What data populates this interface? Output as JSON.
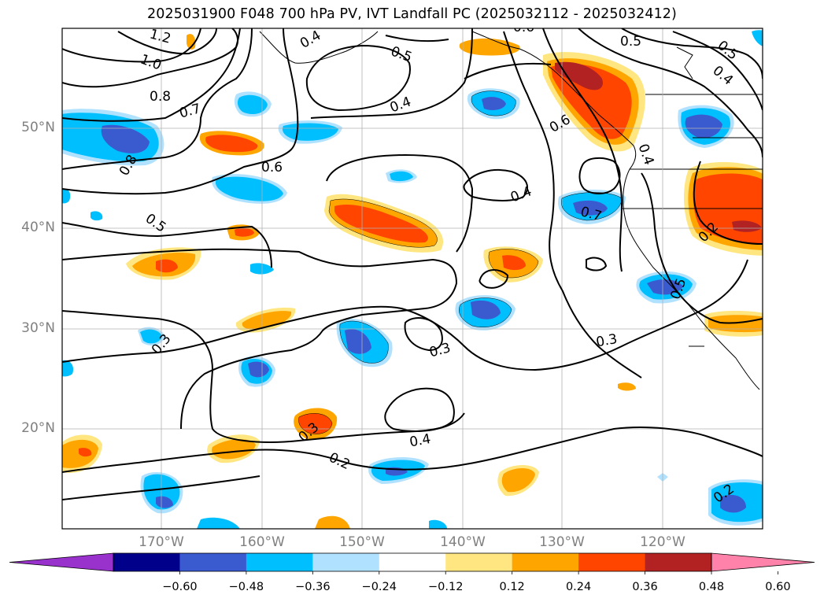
{
  "title": "2025031900 F048 700 hPa PV, IVT Landfall PC (2025032112 - 2025032412)",
  "lat_labels": [
    "50°N",
    "40°N",
    "30°N",
    "20°N"
  ],
  "lon_labels": [
    "170°W",
    "160°W",
    "150°W",
    "140°W",
    "130°W",
    "120°W"
  ],
  "colorbar": {
    "ticks": [
      "−0.60",
      "−0.48",
      "−0.36",
      "−0.24",
      "−0.12",
      "0.12",
      "0.24",
      "0.36",
      "0.48",
      "0.60"
    ],
    "colors": [
      "#9932cc",
      "#00008b",
      "#3a5bd0",
      "#00bfff",
      "#b0e2ff",
      "#ffffff",
      "#ffe680",
      "#ffa500",
      "#ff4500",
      "#b22222",
      "#ff82ab"
    ]
  },
  "contour_labels": [
    "1.2",
    "1.0",
    "0.8",
    "0.7",
    "0.6",
    "0.8",
    "0.5",
    "0.4",
    "0.5",
    "0.4",
    "0.6",
    "0.4",
    "0.5",
    "0.4",
    "0.5",
    "0.6",
    "0.4",
    "0.7",
    "0.2",
    "0.5",
    "0.3",
    "0.3",
    "0.3",
    "0.4",
    "0.2",
    "0.2",
    "0.3"
  ]
}
